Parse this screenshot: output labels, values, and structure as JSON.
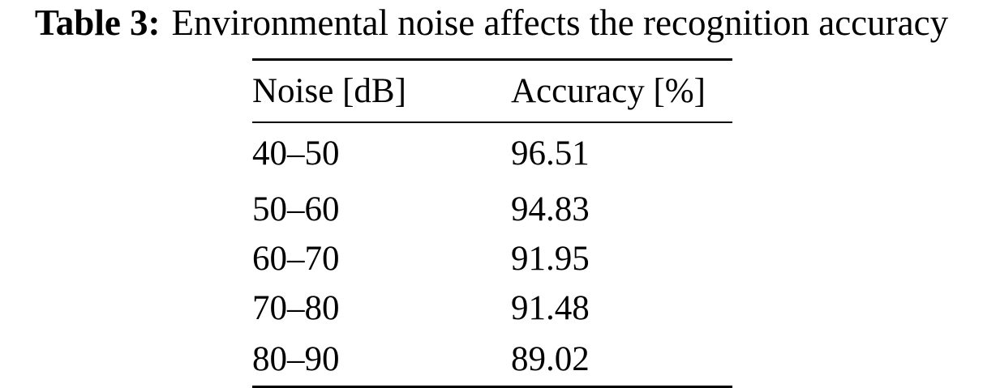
{
  "caption": {
    "label": "Table 3:",
    "text": "Environmental noise affects the recognition accuracy"
  },
  "table": {
    "headers": [
      "Noise [dB]",
      "Accuracy [%]"
    ],
    "rows": [
      [
        "40–50",
        "96.51"
      ],
      [
        "50–60",
        "94.83"
      ],
      [
        "60–70",
        "91.95"
      ],
      [
        "70–80",
        "91.48"
      ],
      [
        "80–90",
        "89.02"
      ]
    ]
  }
}
